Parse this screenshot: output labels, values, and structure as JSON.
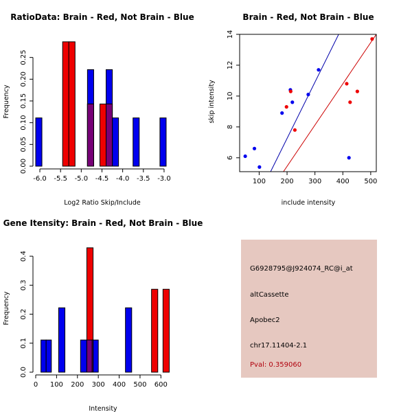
{
  "chart_data": [
    {
      "type": "bar",
      "id": "ratio",
      "title": "RatioData: Brain - Red, Not Brain - Blue",
      "xlabel": "Log2 Ratio Skip/Include",
      "ylabel": "Frequency",
      "xlim": [
        -6.1,
        -2.85
      ],
      "ylim": [
        0,
        0.3
      ],
      "xticks": [
        -6.0,
        -5.5,
        -5.0,
        -4.5,
        -4.0,
        -3.5,
        -3.0
      ],
      "xtick_labels": [
        "-6.0",
        "-5.5",
        "-5.0",
        "-4.5",
        "-4.0",
        "-3.5",
        "-3.0"
      ],
      "yticks": [
        0,
        0.05,
        0.1,
        0.15,
        0.2,
        0.25
      ],
      "ytick_labels": [
        "0.00",
        "0.05",
        "0.10",
        "0.15",
        "0.20",
        "0.25"
      ],
      "series": [
        {
          "name": "Not Brain",
          "color": "#0000ee",
          "bins": [
            [
              -6.1,
              -5.95,
              0.111
            ],
            [
              -4.85,
              -4.7,
              0.222
            ],
            [
              -4.4,
              -4.25,
              0.222
            ],
            [
              -4.25,
              -4.1,
              0.111
            ],
            [
              -3.75,
              -3.6,
              0.111
            ],
            [
              -3.1,
              -2.95,
              0.111
            ]
          ]
        },
        {
          "name": "Brain",
          "color": "#ee0000",
          "bins": [
            [
              -5.45,
              -5.3,
              0.286
            ],
            [
              -5.3,
              -5.15,
              0.286
            ],
            [
              -4.85,
              -4.7,
              0.143
            ],
            [
              -4.55,
              -4.4,
              0.143
            ],
            [
              -4.4,
              -4.25,
              0.143
            ]
          ]
        }
      ],
      "overlap_color": "#770077"
    },
    {
      "type": "scatter",
      "id": "scatter",
      "title": "Brain - Red, Not Brain - Blue",
      "xlabel": "include intensity",
      "ylabel": "skip intensity",
      "xlim": [
        30,
        520
      ],
      "ylim": [
        5.1,
        14.0
      ],
      "xticks": [
        100,
        200,
        300,
        400,
        500
      ],
      "xtick_labels": [
        "100",
        "200",
        "300",
        "400",
        "500"
      ],
      "yticks": [
        6,
        8,
        10,
        12,
        14
      ],
      "ytick_labels": [
        "6",
        "8",
        "10",
        "12",
        "14"
      ],
      "series": [
        {
          "name": "Not Brain",
          "color": "#0000ee",
          "points": [
            [
              50,
              6.1
            ],
            [
              83,
              6.6
            ],
            [
              101,
              5.4
            ],
            [
              182,
              8.9
            ],
            [
              212,
              10.4
            ],
            [
              219,
              9.6
            ],
            [
              276,
              10.1
            ],
            [
              313,
              11.7
            ],
            [
              422,
              6.0
            ]
          ]
        },
        {
          "name": "Brain",
          "color": "#ee0000",
          "points": [
            [
              198,
              9.3
            ],
            [
              213,
              10.3
            ],
            [
              228,
              7.8
            ],
            [
              414,
              10.8
            ],
            [
              426,
              9.6
            ],
            [
              452,
              10.3
            ],
            [
              505,
              13.7
            ]
          ]
        }
      ],
      "fit_lines": [
        {
          "name": "Not Brain fit",
          "color": "#0000aa",
          "from": [
            141,
            5.1
          ],
          "to": [
            385,
            14.0
          ]
        },
        {
          "name": "Brain fit",
          "color": "#cc0000",
          "from": [
            187,
            5.1
          ],
          "to": [
            520,
            14.0
          ]
        }
      ]
    },
    {
      "type": "bar",
      "id": "intensity",
      "title": "Gene Itensity: Brain - Red, Not Brain - Blue",
      "xlabel": "Intensity",
      "ylabel": "Frequency",
      "xlim": [
        0,
        645
      ],
      "ylim": [
        0,
        0.45
      ],
      "xticks": [
        0,
        100,
        200,
        300,
        400,
        500,
        600
      ],
      "xtick_labels": [
        "0",
        "100",
        "200",
        "300",
        "400",
        "500",
        "600"
      ],
      "yticks": [
        0,
        0.1,
        0.2,
        0.3,
        0.4
      ],
      "ytick_labels": [
        "0.0",
        "0.1",
        "0.2",
        "0.3",
        "0.4"
      ],
      "series": [
        {
          "name": "Not Brain",
          "color": "#0000ee",
          "bins": [
            [
              25,
              50,
              0.111
            ],
            [
              50,
              75,
              0.111
            ],
            [
              110,
              140,
              0.222
            ],
            [
              215,
              245,
              0.111
            ],
            [
              245,
              275,
              0.111
            ],
            [
              270,
              300,
              0.111
            ],
            [
              430,
              460,
              0.222
            ]
          ]
        },
        {
          "name": "Brain",
          "color": "#ee0000",
          "bins": [
            [
              245,
              275,
              0.429
            ],
            [
              555,
              585,
              0.286
            ],
            [
              610,
              640,
              0.286
            ]
          ]
        }
      ],
      "overlap_color": "#770077"
    }
  ],
  "info": {
    "probe_id": "G6928795@J924074_RC@i_at",
    "event_type": "altCassette",
    "gene": "Apobec2",
    "location": "chr17.11404-2.1",
    "pval": "Pval: 0.359060"
  }
}
